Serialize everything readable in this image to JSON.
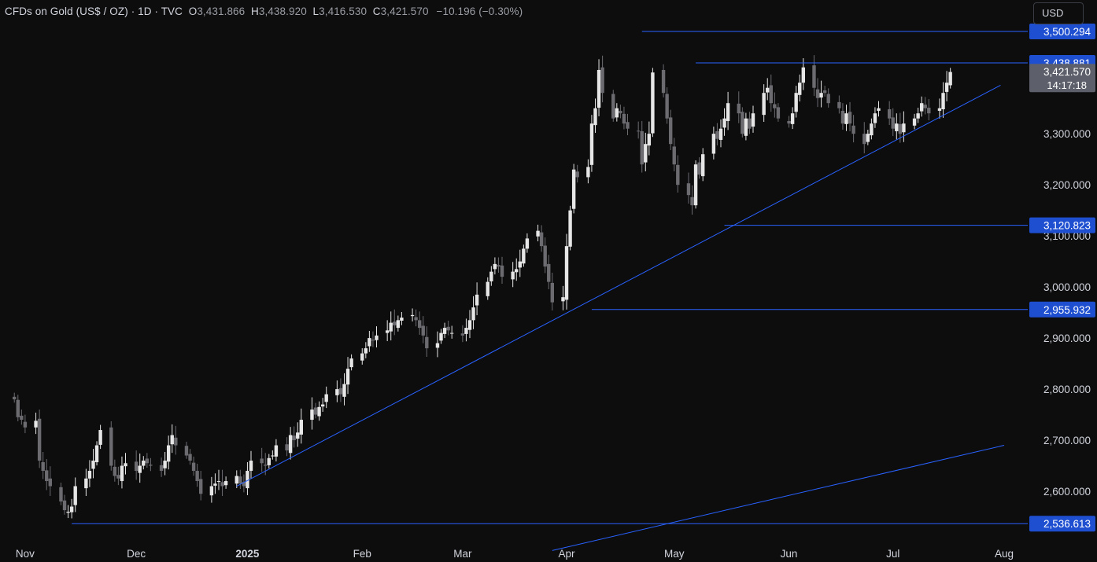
{
  "header": {
    "symbol": "CFDs on Gold (US$ / OZ)",
    "sep1": " · ",
    "interval": "1D",
    "sep2": " · ",
    "source": "TVC",
    "o_label": "O",
    "o_value": "3,431.866",
    "h_label": "H",
    "h_value": "3,438.920",
    "l_label": "L",
    "l_value": "3,416.530",
    "c_label": "C",
    "c_value": "3,421.570",
    "change": "−10.196 (−0.30%)"
  },
  "currency_button": {
    "label": "USD"
  },
  "colors": {
    "background": "#0d0d0e",
    "bull": "#e6e6e6",
    "bear": "#6b6b70",
    "line": "#2962ff",
    "label_blue": "#1e4fd1",
    "price_label": "#5d606b"
  },
  "chart_data": {
    "type": "candlestick",
    "y_axis": {
      "range": [
        2500,
        3525
      ],
      "ticks": [
        {
          "value": 2600,
          "label": "2,600.000"
        },
        {
          "value": 2700,
          "label": "2,700.000"
        },
        {
          "value": 2800,
          "label": "2,800.000"
        },
        {
          "value": 2900,
          "label": "2,900.000"
        },
        {
          "value": 3000,
          "label": "3,000.000"
        },
        {
          "value": 3100,
          "label": "3,100.000"
        },
        {
          "value": 3200,
          "label": "3,200.000"
        },
        {
          "value": 3300,
          "label": "3,300.000"
        }
      ]
    },
    "x_axis": {
      "ticks": [
        {
          "date": "2024-11-01",
          "label": "Nov",
          "bold": false
        },
        {
          "date": "2024-12-02",
          "label": "Dec",
          "bold": false
        },
        {
          "date": "2025-01-02",
          "label": "2025",
          "bold": true
        },
        {
          "date": "2025-02-03",
          "label": "Feb",
          "bold": false
        },
        {
          "date": "2025-03-03",
          "label": "Mar",
          "bold": false
        },
        {
          "date": "2025-04-01",
          "label": "Apr",
          "bold": false
        },
        {
          "date": "2025-05-01",
          "label": "May",
          "bold": false
        },
        {
          "date": "2025-06-02",
          "label": "Jun",
          "bold": false
        },
        {
          "date": "2025-07-01",
          "label": "Jul",
          "bold": false
        },
        {
          "date": "2025-08-01",
          "label": "Aug",
          "bold": false
        }
      ]
    },
    "candle_start": "2024-10-29",
    "trading_days_per_week": 5,
    "closes": [
      2780,
      2745,
      2740,
      2725,
      2738,
      2660,
      2640,
      2620,
      2610,
      2580,
      2563,
      2560,
      2570,
      2610,
      2625,
      2640,
      2660,
      2690,
      2720,
      2650,
      2630,
      2625,
      2650,
      2655,
      2640,
      2650,
      2660,
      2655,
      2650,
      2640,
      2660,
      2690,
      2710,
      2690,
      2670,
      2660,
      2640,
      2620,
      2595,
      2610,
      2615,
      2620,
      2610,
      2620,
      2630,
      2615,
      2610,
      2640,
      2660,
      2655,
      2650,
      2665,
      2670,
      2690,
      2680,
      2710,
      2700,
      2715,
      2740,
      2760,
      2750,
      2765,
      2770,
      2790,
      2800,
      2790,
      2810,
      2840,
      2860,
      2870,
      2880,
      2900,
      2895,
      2905,
      2915,
      2930,
      2925,
      2935,
      2940,
      2945,
      2935,
      2920,
      2905,
      2880,
      2890,
      2910,
      2920,
      2915,
      2910,
      2905,
      2920,
      2935,
      2960,
      2985,
      3010,
      3030,
      3045,
      3040,
      3020,
      3030,
      3035,
      3050,
      3075,
      3095,
      3110,
      3080,
      3040,
      3010,
      2970,
      2980,
      3080,
      3150,
      3230,
      3215,
      3235,
      3320,
      3350,
      3425,
      3380,
      3330,
      3350,
      3340,
      3320,
      3310,
      3305,
      3240,
      3280,
      3300,
      3420,
      3380,
      3330,
      3280,
      3240,
      3200,
      3180,
      3160,
      3240,
      3220,
      3260,
      3300,
      3290,
      3310,
      3330,
      3360,
      3340,
      3300,
      3330,
      3310,
      3340,
      3380,
      3390,
      3360,
      3350,
      3330,
      3320,
      3340,
      3380,
      3400,
      3430,
      3390,
      3370,
      3380,
      3380,
      3360,
      3350,
      3320,
      3340,
      3320,
      3300,
      3280,
      3300,
      3320,
      3340,
      3350,
      3330,
      3310,
      3320,
      3300,
      3320,
      3330,
      3340,
      3360,
      3350,
      3340,
      3350,
      3380,
      3400,
      3421
    ],
    "price_lines": [
      {
        "value": 3500.294,
        "label": "3,500.294",
        "from_date": "2025-04-22"
      },
      {
        "value": 3438.881,
        "label": "3,438.881",
        "from_date": "2025-05-07"
      },
      {
        "value": 3120.823,
        "label": "3,120.823",
        "from_date": "2025-05-15"
      },
      {
        "value": 2955.932,
        "label": "2,955.932",
        "from_date": "2025-04-08"
      },
      {
        "value": 2536.613,
        "label": "2,536.613",
        "from_date": "2024-11-14"
      }
    ],
    "trendlines": [
      {
        "from": {
          "date": "2024-12-30",
          "value": 2610
        },
        "to": {
          "date": "2025-07-31",
          "value": 3395
        }
      },
      {
        "from": {
          "date": "2025-03-28",
          "value": 2484
        },
        "to": {
          "date": "2025-08-01",
          "value": 2690
        }
      }
    ],
    "last_price": {
      "value": 3421.57,
      "label": "3,421.570",
      "countdown": "14:17:18"
    }
  }
}
